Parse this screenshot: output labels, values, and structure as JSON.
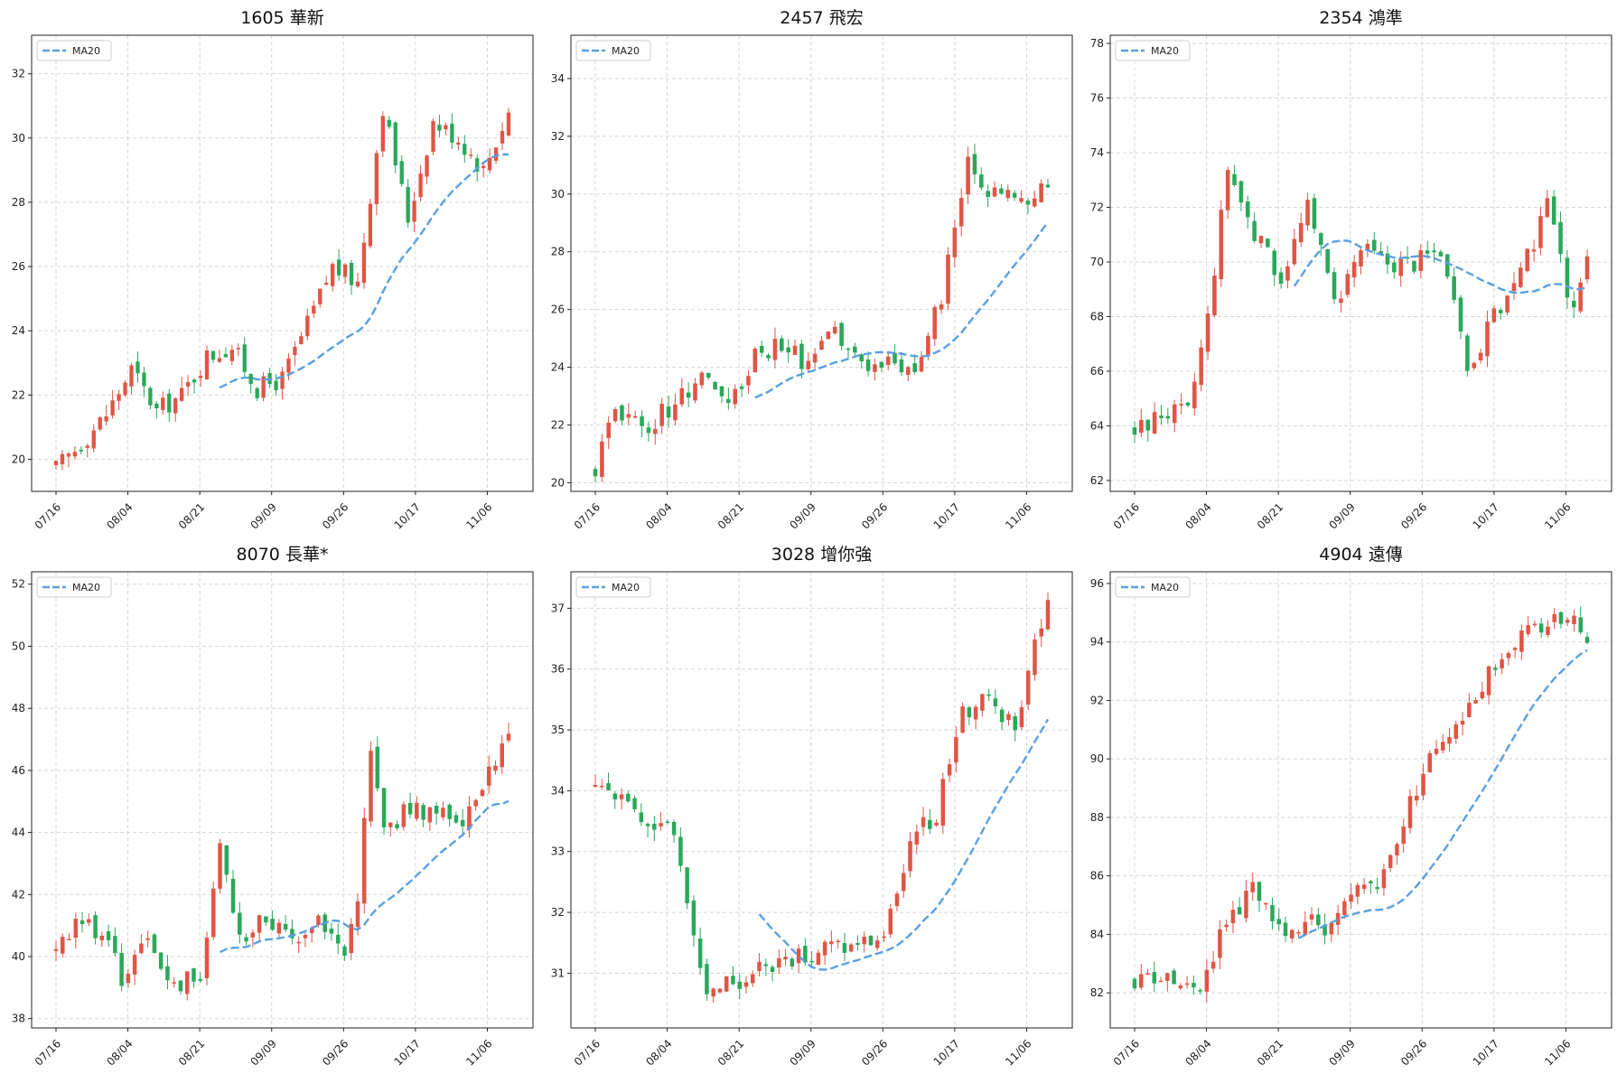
{
  "colors": {
    "up": "#e05545",
    "down": "#2aa85a",
    "ma": "#5aa0e0",
    "grid": "#d8d8d8"
  },
  "chart_data": [
    {
      "type": "candlestick",
      "title": "1605 華新",
      "legend": "MA20",
      "legend_placement": "top-left",
      "grid": true,
      "x_ticks": [
        "07/16",
        "08/04",
        "08/21",
        "09/09",
        "09/26",
        "10/17",
        "11/06"
      ],
      "y_ticks": [
        20,
        22,
        24,
        26,
        28,
        30,
        32
      ],
      "ylim": [
        19,
        33.2
      ],
      "anchors": [
        [
          0,
          19.7
        ],
        [
          4,
          20.5
        ],
        [
          8,
          21.4
        ],
        [
          12,
          22.8
        ],
        [
          16,
          21.5
        ],
        [
          20,
          22.0
        ],
        [
          24,
          23.2
        ],
        [
          28,
          23.5
        ],
        [
          32,
          22.2
        ],
        [
          36,
          22.5
        ],
        [
          40,
          24.2
        ],
        [
          44,
          26.0
        ],
        [
          48,
          25.5
        ],
        [
          52,
          31.0
        ],
        [
          56,
          27.5
        ],
        [
          60,
          30.5
        ],
        [
          64,
          30.0
        ],
        [
          68,
          29.0
        ],
        [
          72,
          30.8
        ]
      ],
      "ma_start": 26,
      "n": 73
    },
    {
      "type": "candlestick",
      "title": "2457 飛宏",
      "legend": "MA20",
      "legend_placement": "top-left",
      "grid": true,
      "x_ticks": [
        "07/16",
        "08/04",
        "08/21",
        "09/09",
        "09/26",
        "10/17",
        "11/06"
      ],
      "y_ticks": [
        20,
        22,
        24,
        26,
        28,
        30,
        32,
        34
      ],
      "ylim": [
        19.7,
        35.5
      ],
      "anchors": [
        [
          0,
          20.5
        ],
        [
          3,
          22.5
        ],
        [
          8,
          22.0
        ],
        [
          12,
          22.8
        ],
        [
          16,
          23.8
        ],
        [
          20,
          22.5
        ],
        [
          24,
          24.5
        ],
        [
          28,
          24.8
        ],
        [
          32,
          24.0
        ],
        [
          36,
          25.2
        ],
        [
          40,
          24.0
        ],
        [
          44,
          24.3
        ],
        [
          48,
          24.0
        ],
        [
          52,
          26.5
        ],
        [
          56,
          31.0
        ],
        [
          60,
          30.0
        ],
        [
          64,
          29.8
        ],
        [
          68,
          30.3
        ]
      ],
      "ma_start": 24,
      "n": 69
    },
    {
      "type": "candlestick",
      "title": "2354 鴻準",
      "legend": "MA20",
      "legend_placement": "top-left",
      "grid": true,
      "x_ticks": [
        "07/16",
        "08/04",
        "08/21",
        "09/09",
        "09/26",
        "10/17",
        "11/06"
      ],
      "y_ticks": [
        62,
        64,
        66,
        68,
        70,
        72,
        74,
        76,
        78
      ],
      "ylim": [
        61.6,
        78.3
      ],
      "anchors": [
        [
          0,
          63.8
        ],
        [
          4,
          64.5
        ],
        [
          8,
          64.5
        ],
        [
          11,
          68.0
        ],
        [
          14,
          73.5
        ],
        [
          18,
          71.0
        ],
        [
          22,
          69.5
        ],
        [
          26,
          72.0
        ],
        [
          30,
          68.5
        ],
        [
          34,
          70.5
        ],
        [
          38,
          70.0
        ],
        [
          42,
          70.0
        ],
        [
          46,
          70.5
        ],
        [
          50,
          66.0
        ],
        [
          54,
          68.0
        ],
        [
          58,
          69.5
        ],
        [
          62,
          72.0
        ],
        [
          64,
          70.0
        ],
        [
          66,
          68.0
        ],
        [
          68,
          70.5
        ]
      ],
      "ma_start": 24,
      "n": 69
    },
    {
      "type": "candlestick",
      "title": "8070 長華*",
      "legend": "MA20",
      "legend_placement": "top-left",
      "grid": true,
      "x_ticks": [
        "07/16",
        "08/04",
        "08/21",
        "09/09",
        "09/26",
        "10/17",
        "11/06"
      ],
      "y_ticks": [
        38,
        40,
        42,
        44,
        46,
        48,
        50,
        52
      ],
      "ylim": [
        37.7,
        52.4
      ],
      "anchors": [
        [
          0,
          40.2
        ],
        [
          4,
          41.2
        ],
        [
          8,
          40.5
        ],
        [
          10,
          39.3
        ],
        [
          14,
          40.5
        ],
        [
          18,
          39.0
        ],
        [
          22,
          39.5
        ],
        [
          25,
          43.5
        ],
        [
          28,
          40.5
        ],
        [
          32,
          41.2
        ],
        [
          36,
          40.5
        ],
        [
          40,
          41.3
        ],
        [
          44,
          40.0
        ],
        [
          46,
          42.0
        ],
        [
          48,
          46.5
        ],
        [
          50,
          44.0
        ],
        [
          54,
          44.8
        ],
        [
          58,
          44.5
        ],
        [
          62,
          44.5
        ],
        [
          66,
          46.0
        ],
        [
          69,
          47.0
        ]
      ],
      "ma_start": 25,
      "n": 70
    },
    {
      "type": "candlestick",
      "title": "3028 增你強",
      "legend": "MA20",
      "legend_placement": "top-left",
      "grid": true,
      "x_ticks": [
        "07/16",
        "08/04",
        "08/21",
        "09/09",
        "09/26",
        "10/17",
        "11/06"
      ],
      "y_ticks": [
        31,
        32,
        33,
        34,
        35,
        36,
        37
      ],
      "ylim": [
        30.1,
        37.6
      ],
      "anchors": [
        [
          0,
          34.0
        ],
        [
          4,
          34.0
        ],
        [
          8,
          33.5
        ],
        [
          12,
          33.3
        ],
        [
          14,
          32.0
        ],
        [
          17,
          30.8
        ],
        [
          20,
          30.8
        ],
        [
          24,
          31.0
        ],
        [
          28,
          31.2
        ],
        [
          32,
          31.3
        ],
        [
          36,
          31.5
        ],
        [
          40,
          31.5
        ],
        [
          44,
          31.6
        ],
        [
          48,
          33.2
        ],
        [
          52,
          33.6
        ],
        [
          56,
          35.3
        ],
        [
          60,
          35.5
        ],
        [
          64,
          35.0
        ],
        [
          66,
          36.0
        ],
        [
          69,
          37.0
        ]
      ],
      "ma_start": 25,
      "n": 70
    },
    {
      "type": "candlestick",
      "title": "4904 遠傳",
      "legend": "MA20",
      "legend_placement": "top-left",
      "grid": true,
      "x_ticks": [
        "07/16",
        "08/04",
        "08/21",
        "09/09",
        "09/26",
        "10/17",
        "11/06"
      ],
      "y_ticks": [
        82,
        84,
        86,
        88,
        90,
        92,
        94,
        96
      ],
      "ylim": [
        80.8,
        96.4
      ],
      "anchors": [
        [
          0,
          82.5
        ],
        [
          4,
          82.5
        ],
        [
          8,
          82.0
        ],
        [
          10,
          82.2
        ],
        [
          14,
          84.5
        ],
        [
          18,
          85.5
        ],
        [
          22,
          84.0
        ],
        [
          26,
          84.5
        ],
        [
          30,
          84.2
        ],
        [
          34,
          85.5
        ],
        [
          38,
          86.0
        ],
        [
          42,
          88.5
        ],
        [
          46,
          90.5
        ],
        [
          50,
          91.5
        ],
        [
          54,
          93.0
        ],
        [
          58,
          94.0
        ],
        [
          62,
          94.5
        ],
        [
          66,
          95.0
        ],
        [
          69,
          94.3
        ]
      ],
      "ma_start": 25,
      "n": 70
    }
  ]
}
